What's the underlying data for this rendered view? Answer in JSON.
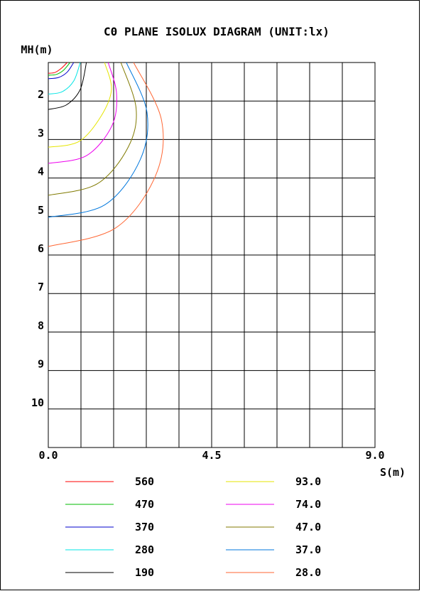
{
  "chart_data": {
    "type": "line",
    "title": "C0 PLANE ISOLUX DIAGRAM (UNIT:lx)",
    "ylabel": "MH(m)",
    "xlabel": "S(m)",
    "xlim": [
      0,
      9
    ],
    "ylim": [
      1,
      11
    ],
    "x_ticks": [
      "0.0",
      "4.5",
      "9.0"
    ],
    "y_ticks": [
      "2",
      "3",
      "4",
      "5",
      "6",
      "7",
      "8",
      "9",
      "10"
    ],
    "grid": true,
    "legend_position": "bottom",
    "series": [
      {
        "name": "560",
        "color": "#ff0000",
        "points": [
          [
            0.0,
            1.28
          ],
          [
            0.18,
            1.26
          ],
          [
            0.36,
            1.15
          ],
          [
            0.52,
            1.0
          ]
        ]
      },
      {
        "name": "470",
        "color": "#00bb00",
        "points": [
          [
            0.0,
            1.33
          ],
          [
            0.22,
            1.31
          ],
          [
            0.42,
            1.2
          ],
          [
            0.6,
            1.0
          ]
        ]
      },
      {
        "name": "370",
        "color": "#0000cc",
        "points": [
          [
            0.0,
            1.42
          ],
          [
            0.28,
            1.39
          ],
          [
            0.52,
            1.25
          ],
          [
            0.7,
            1.0
          ]
        ]
      },
      {
        "name": "280",
        "color": "#00e5e5",
        "points": [
          [
            0.0,
            1.82
          ],
          [
            0.38,
            1.76
          ],
          [
            0.7,
            1.48
          ],
          [
            0.88,
            1.0
          ]
        ]
      },
      {
        "name": "190",
        "color": "#000000",
        "points": [
          [
            0.0,
            2.22
          ],
          [
            0.5,
            2.1
          ],
          [
            0.88,
            1.7
          ],
          [
            1.05,
            1.0
          ]
        ]
      },
      {
        "name": "93.0",
        "color": "#e5e500",
        "points": [
          [
            0.0,
            3.2
          ],
          [
            0.85,
            3.05
          ],
          [
            1.45,
            2.4
          ],
          [
            1.74,
            1.7
          ],
          [
            1.55,
            1.0
          ]
        ]
      },
      {
        "name": "74.0",
        "color": "#ee00ee",
        "points": [
          [
            0.0,
            3.62
          ],
          [
            1.05,
            3.42
          ],
          [
            1.75,
            2.65
          ],
          [
            1.88,
            1.8
          ],
          [
            1.65,
            1.0
          ]
        ]
      },
      {
        "name": "47.0",
        "color": "#807a00",
        "points": [
          [
            0.0,
            4.45
          ],
          [
            1.35,
            4.15
          ],
          [
            2.2,
            3.2
          ],
          [
            2.42,
            2.2
          ],
          [
            2.0,
            1.0
          ]
        ]
      },
      {
        "name": "37.0",
        "color": "#0077dd",
        "points": [
          [
            0.0,
            5.02
          ],
          [
            1.55,
            4.7
          ],
          [
            2.52,
            3.55
          ],
          [
            2.72,
            2.3
          ],
          [
            2.15,
            1.0
          ]
        ]
      },
      {
        "name": "28.0",
        "color": "#ff6633",
        "points": [
          [
            0.0,
            5.78
          ],
          [
            1.85,
            5.3
          ],
          [
            2.95,
            3.95
          ],
          [
            3.12,
            2.5
          ],
          [
            2.35,
            1.0
          ]
        ]
      }
    ]
  }
}
